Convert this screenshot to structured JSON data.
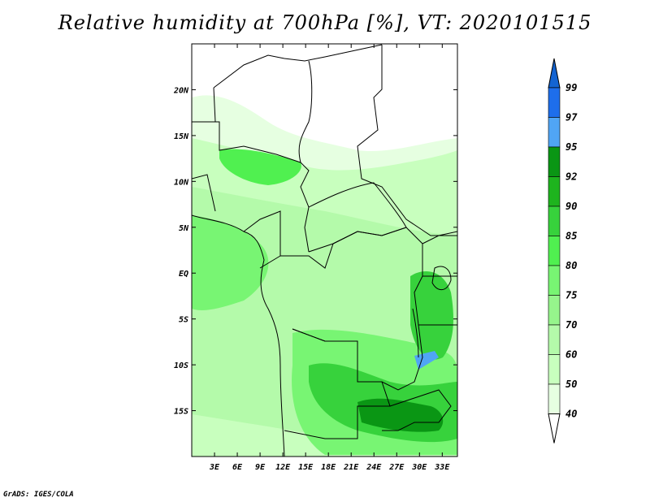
{
  "title": "Relative humidity at 700hPa [%], VT: 2020101515",
  "credit": "GrADS: IGES/COLA",
  "map": {
    "lat_ticks": [
      "20N",
      "15N",
      "10N",
      "5N",
      "EQ",
      "5S",
      "10S",
      "15S"
    ],
    "lon_ticks": [
      "3E",
      "6E",
      "9E",
      "12E",
      "15E",
      "18E",
      "21E",
      "24E",
      "27E",
      "30E",
      "33E"
    ],
    "lat_range": [
      -20,
      25
    ],
    "lon_range": [
      0,
      35
    ],
    "lat_values": [
      20,
      15,
      10,
      5,
      0,
      -5,
      -10,
      -15
    ],
    "lon_values": [
      3,
      6,
      9,
      12,
      15,
      18,
      21,
      24,
      27,
      30,
      33
    ]
  },
  "colorbar": {
    "labels": [
      "99",
      "97",
      "95",
      "92",
      "90",
      "85",
      "80",
      "75",
      "70",
      "60",
      "50",
      "40"
    ],
    "colors": [
      "#1464d2",
      "#1e6eeb",
      "#50a5f5",
      "#0a9614",
      "#1eb41e",
      "#37d23c",
      "#50f050",
      "#78f573",
      "#96f58c",
      "#b4faaa",
      "#c8ffbe",
      "#e6ffe1"
    ]
  }
}
